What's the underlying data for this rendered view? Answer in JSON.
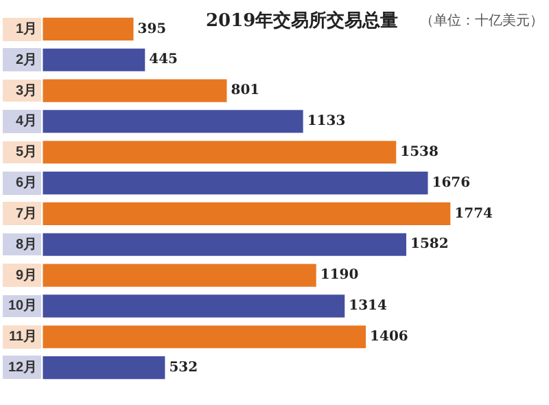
{
  "chart_data": {
    "type": "bar",
    "orientation": "horizontal",
    "title": "2019年交易所交易总量",
    "subtitle": "（单位：十亿美元）",
    "categories": [
      "1月",
      "2月",
      "3月",
      "4月",
      "5月",
      "6月",
      "7月",
      "8月",
      "9月",
      "10月",
      "11月",
      "12月"
    ],
    "values": [
      395,
      445,
      801,
      1133,
      1538,
      1676,
      1774,
      1582,
      1190,
      1314,
      1406,
      532
    ],
    "colors": [
      "#e87722",
      "#454fa0",
      "#e87722",
      "#454fa0",
      "#e87722",
      "#454fa0",
      "#e87722",
      "#454fa0",
      "#e87722",
      "#454fa0",
      "#e87722",
      "#454fa0"
    ],
    "data_labels": true,
    "grid": false,
    "legend": false
  }
}
